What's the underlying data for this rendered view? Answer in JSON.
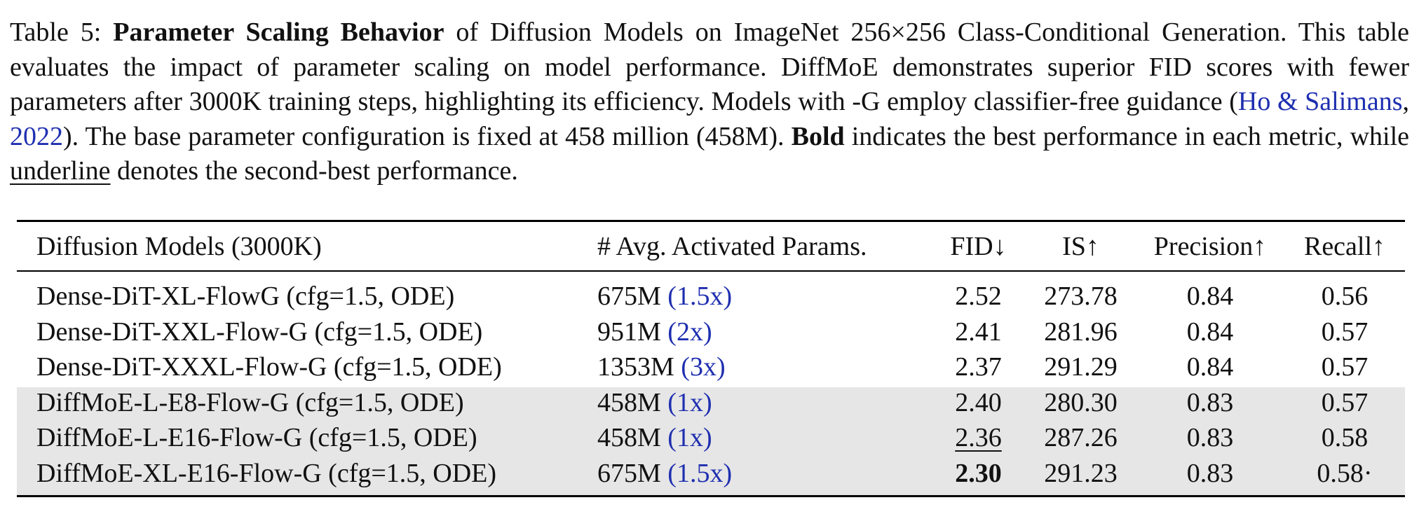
{
  "caption": {
    "label": "Table 5:",
    "title_bold": "Parameter Scaling Behavior",
    "text1": " of Diffusion Models on ImageNet 256×256 Class-Conditional Generation. This table evaluates the impact of parameter scaling on model performance. DiffMoE demonstrates superior FID scores with fewer parameters after 3000K training steps, highlighting its efficiency. Models with -G employ classifier-free guidance (",
    "cite_authors": "Ho & Salimans",
    "cite_sep": ", ",
    "cite_year": "2022",
    "text2": "). The base parameter configuration is fixed at 458 million (458M). ",
    "bold_word": "Bold",
    "text3": " indicates the best performance in each metric, while ",
    "underline_word": "underline",
    "text4": " denotes the second-best performance."
  },
  "table": {
    "headers": {
      "model": "Diffusion Models (3000K)",
      "params": "# Avg. Activated Params.",
      "fid": "FID↓",
      "is": "IS↑",
      "precision": "Precision↑",
      "recall": "Recall↑"
    },
    "rows": [
      {
        "model": "Dense-DiT-XL-FlowG (cfg=1.5, ODE)",
        "params": "675M",
        "mult": "(1.5x)",
        "fid": "2.52",
        "is": "273.78",
        "precision": "0.84",
        "recall": "0.56"
      },
      {
        "model": "Dense-DiT-XXL-Flow-G (cfg=1.5, ODE)",
        "params": "951M",
        "mult": "(2x)",
        "fid": "2.41",
        "is": "281.96",
        "precision": "0.84",
        "recall": "0.57"
      },
      {
        "model": "Dense-DiT-XXXL-Flow-G (cfg=1.5, ODE)",
        "params": "1353M",
        "mult": "(3x)",
        "fid": "2.37",
        "is": "291.29",
        "precision": "0.84",
        "recall": "0.57"
      },
      {
        "model": "DiffMoE-L-E8-Flow-G (cfg=1.5, ODE)",
        "params": "458M",
        "mult": "(1x)",
        "fid": "2.40",
        "is": "280.30",
        "precision": "0.83",
        "recall": "0.57"
      },
      {
        "model": "DiffMoE-L-E16-Flow-G (cfg=1.5, ODE)",
        "params": "458M",
        "mult": "(1x)",
        "fid": "2.36",
        "is": "287.26",
        "precision": "0.83",
        "recall": "0.58"
      },
      {
        "model": "DiffMoE-XL-E16-Flow-G (cfg=1.5, ODE)",
        "params": "675M",
        "mult": "(1.5x)",
        "fid": "2.30",
        "is": "291.23",
        "precision": "0.83",
        "recall": "0.58·"
      }
    ]
  },
  "colors": {
    "citation": "#1f2fb0",
    "highlight_rows": "#e6e6e6"
  }
}
